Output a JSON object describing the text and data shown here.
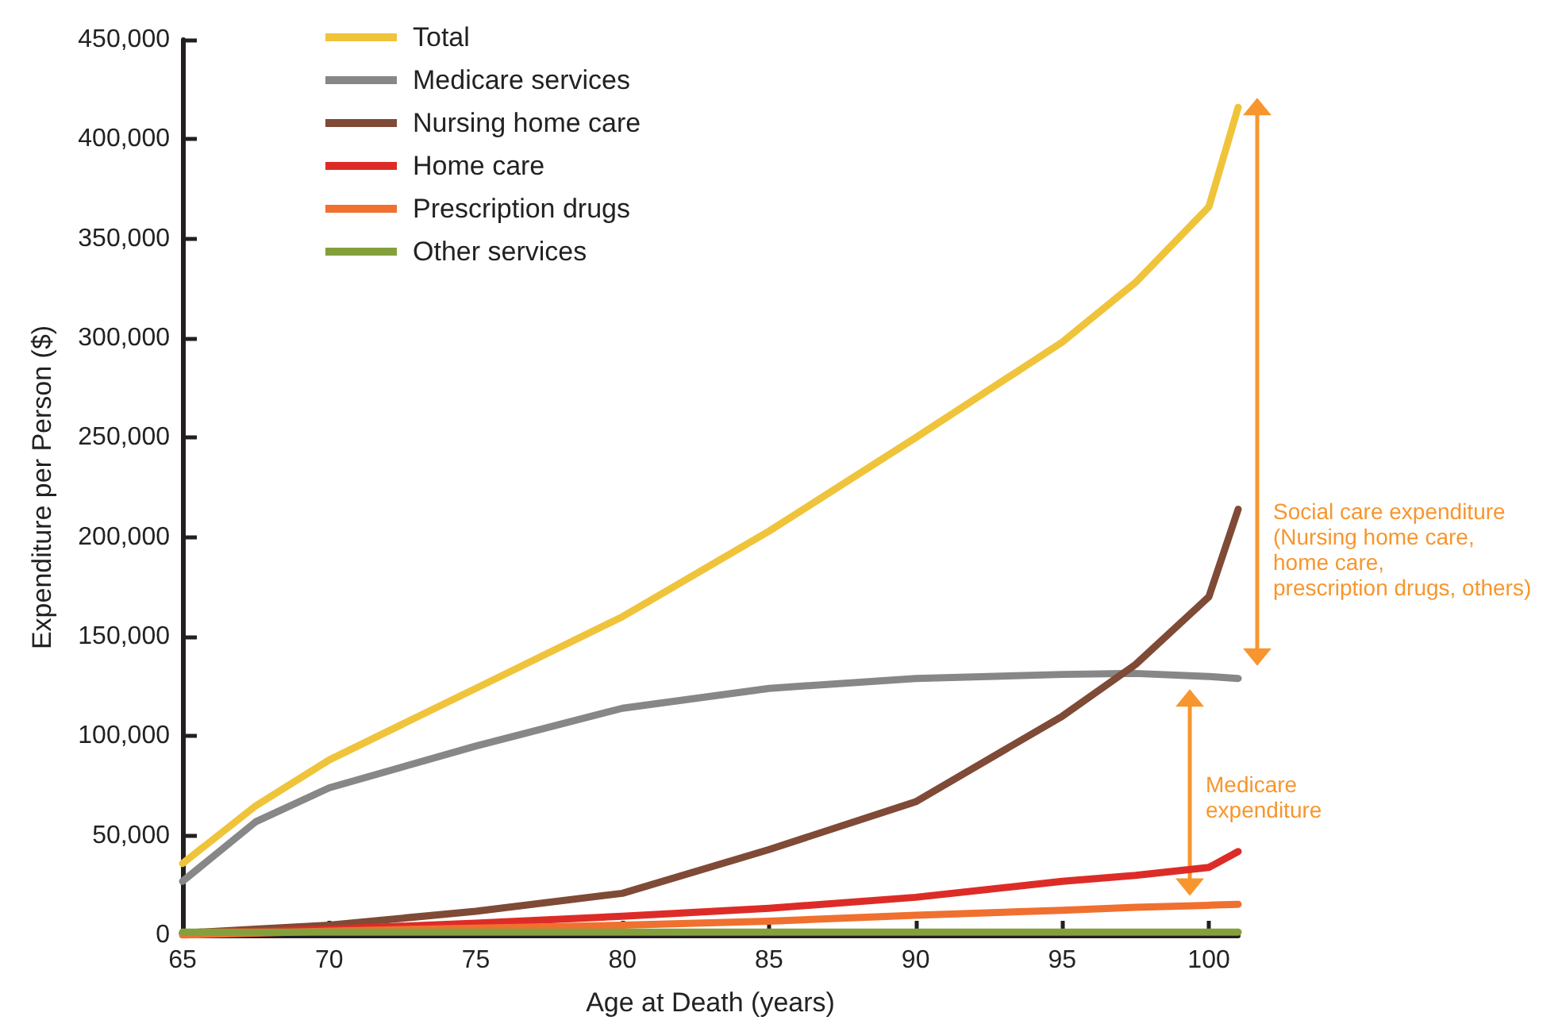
{
  "chart_data": {
    "type": "line",
    "xlabel": "Age at Death (years)",
    "ylabel": "Expenditure per Person ($)",
    "x": [
      65,
      67.5,
      70,
      75,
      80,
      85,
      90,
      95,
      97.5,
      100,
      101
    ],
    "series": [
      {
        "name": "Total",
        "color": "#f0c43a",
        "values": [
          36000,
          65000,
          88000,
          124000,
          160000,
          203000,
          250000,
          298000,
          328000,
          366000,
          416000
        ]
      },
      {
        "name": "Medicare services",
        "color": "#878787",
        "values": [
          27000,
          57000,
          74000,
          95000,
          114000,
          124000,
          129000,
          131000,
          131500,
          130000,
          129000
        ]
      },
      {
        "name": "Nursing home care",
        "color": "#7f4a36",
        "values": [
          1000,
          3000,
          5000,
          12000,
          21000,
          43000,
          67000,
          110000,
          136000,
          170000,
          214000
        ]
      },
      {
        "name": "Home care",
        "color": "#dd2c27",
        "values": [
          1000,
          2000,
          3000,
          6000,
          9500,
          13500,
          19000,
          27000,
          30000,
          34000,
          42000
        ]
      },
      {
        "name": "Prescription drugs",
        "color": "#f07030",
        "values": [
          0,
          1000,
          2000,
          3500,
          5000,
          7000,
          10000,
          12500,
          14000,
          15000,
          15500
        ]
      },
      {
        "name": "Other services",
        "color": "#84a03c",
        "values": [
          1500,
          1500,
          1500,
          1500,
          1500,
          1500,
          1500,
          1500,
          1500,
          1500,
          1500
        ]
      }
    ],
    "xlim": [
      65,
      101
    ],
    "xticks": [
      65,
      70,
      75,
      80,
      85,
      90,
      95,
      100
    ],
    "ylim": [
      0,
      450000
    ],
    "yticks": [
      0,
      {
        "value": 50000,
        "label": "50,000"
      },
      {
        "value": 100000,
        "label": "100,000"
      },
      {
        "value": 150000,
        "label": "150,000"
      },
      {
        "value": 200000,
        "label": "200,000"
      },
      {
        "value": 250000,
        "label": "250,000"
      },
      {
        "value": 300000,
        "label": "300,000"
      },
      {
        "value": 350000,
        "label": "350,000"
      },
      {
        "value": 400000,
        "label": "400,000"
      },
      {
        "value": 450000,
        "label": "450,000"
      }
    ],
    "annotations": [
      "Social care expenditure\n(Nursing home care,\nhome care,\nprescription drugs, others)",
      "Medicare\nexpenditure"
    ],
    "legend": "top left",
    "grid": false,
    "marker": "none",
    "line_style": "solid"
  }
}
